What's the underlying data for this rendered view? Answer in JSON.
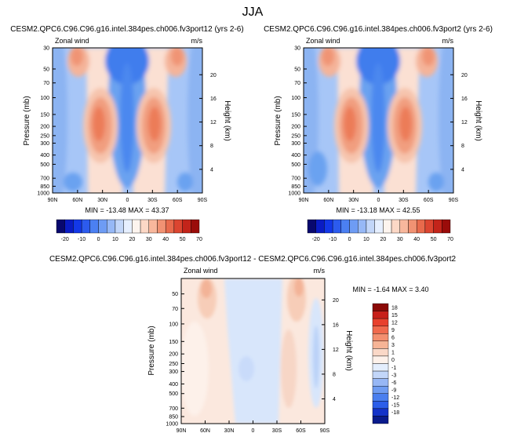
{
  "page_title": "JJA",
  "chart_data": [
    {
      "type": "heatmap",
      "title": "CESM2.QPC6.C96.C96.g16.intel.384pes.ch006.fv3port12 (yrs 2-6)",
      "left_label": "Zonal wind",
      "right_label": "m/s",
      "ylabel": "Pressure (mb)",
      "ylabel_right": "Height (km)",
      "xticks": [
        "90N",
        "60N",
        "30N",
        "0",
        "30S",
        "60S",
        "90S"
      ],
      "yticks": [
        "30",
        "50",
        "70",
        "100",
        "150",
        "200",
        "250",
        "300",
        "400",
        "500",
        "700",
        "850",
        "1000"
      ],
      "yticks_right": [
        "20",
        "16",
        "12",
        "8",
        "4"
      ],
      "stats": "MIN = -13.48  MAX = 43.37",
      "colorbar_labels": [
        "-20",
        "-10",
        "0",
        "10",
        "20",
        "30",
        "40",
        "50",
        "70"
      ],
      "jet_peak": 43
    },
    {
      "type": "heatmap",
      "title": "CESM2.QPC6.C96.C96.g16.intel.384pes.ch006.fv3port2 (yrs 2-6)",
      "left_label": "Zonal wind",
      "right_label": "m/s",
      "ylabel": "Pressure (mb)",
      "ylabel_right": "Height (km)",
      "xticks": [
        "90N",
        "60N",
        "30N",
        "0",
        "30S",
        "60S",
        "90S"
      ],
      "yticks": [
        "30",
        "50",
        "70",
        "100",
        "150",
        "200",
        "250",
        "300",
        "400",
        "500",
        "700",
        "850",
        "1000"
      ],
      "yticks_right": [
        "20",
        "16",
        "12",
        "8",
        "4"
      ],
      "stats": "MIN = -13.18  MAX = 42.55",
      "colorbar_labels": [
        "-20",
        "-10",
        "0",
        "10",
        "20",
        "30",
        "40",
        "50",
        "70"
      ],
      "jet_peak": 42.5
    },
    {
      "type": "heatmap",
      "title": "CESM2.QPC6.C96.C96.g16.intel.384pes.ch006.fv3port12 - CESM2.QPC6.C96.C96.g16.intel.384pes.ch006.fv3port2",
      "left_label": "Zonal wind",
      "right_label": "m/s",
      "ylabel": "Pressure (mb)",
      "ylabel_right": "Height (km)",
      "xticks": [
        "90N",
        "60N",
        "30N",
        "0",
        "30S",
        "60S",
        "90S"
      ],
      "yticks": [
        "50",
        "70",
        "100",
        "150",
        "200",
        "250",
        "300",
        "400",
        "500",
        "700",
        "850",
        "1000"
      ],
      "yticks_right": [
        "20",
        "16",
        "12",
        "8",
        "4"
      ],
      "stats": "MIN = -1.64  MAX =  3.40",
      "colorbar_labels": [
        "18",
        "15",
        "12",
        "9",
        "6",
        "3",
        "1",
        "0",
        "-1",
        "-3",
        "-6",
        "-9",
        "-12",
        "-15",
        "-18"
      ]
    }
  ]
}
